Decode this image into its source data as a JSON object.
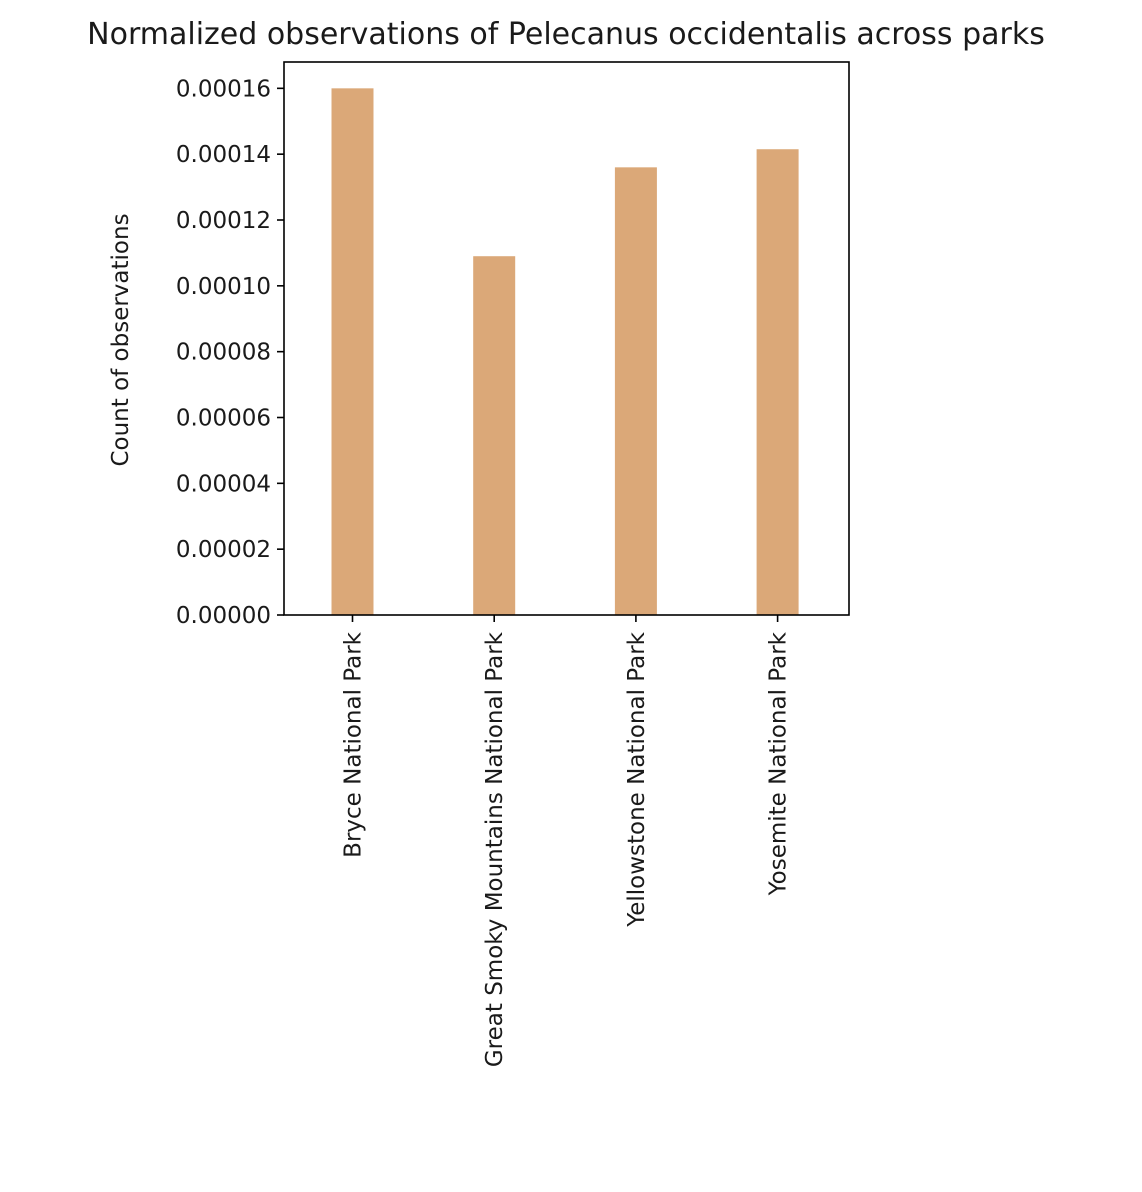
{
  "chart_data": {
    "type": "bar",
    "title": "Normalized observations of Pelecanus occidentalis across parks",
    "xlabel": "",
    "ylabel": "Count of observations",
    "categories": [
      "Bryce National Park",
      "Great Smoky Mountains National Park",
      "Yellowstone National Park",
      "Yosemite National Park"
    ],
    "values": [
      0.00016,
      0.000109,
      0.000136,
      0.0001415
    ],
    "ylim": [
      0,
      0.000168
    ],
    "yticks": [
      0.0,
      2e-05,
      4e-05,
      6e-05,
      8e-05,
      0.0001,
      0.00012,
      0.00014,
      0.00016
    ],
    "ytick_labels": [
      "0.00000",
      "0.00002",
      "0.00004",
      "0.00006",
      "0.00008",
      "0.00010",
      "0.00012",
      "0.00014",
      "0.00016"
    ],
    "bar_color": "#dba878",
    "grid": false,
    "legend": "none"
  }
}
